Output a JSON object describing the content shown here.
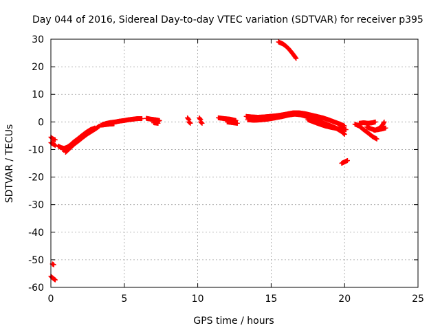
{
  "chart_data": {
    "type": "scatter",
    "title": "Day 044 of 2016, Sidereal Day-to-day VTEC variation (SDTVAR) for receiver p395",
    "xlabel": "GPS time / hours",
    "ylabel": "SDTVAR / TECUs",
    "xlim": [
      0,
      25
    ],
    "ylim": [
      -60,
      30
    ],
    "xticks": [
      0,
      5,
      10,
      15,
      20,
      25
    ],
    "yticks": [
      30,
      20,
      10,
      0,
      -10,
      -20,
      -30,
      -40,
      -50,
      -60
    ],
    "xtick_labels": [
      "0",
      "5",
      "10",
      "15",
      "20",
      "25"
    ],
    "ytick_labels": [
      "30",
      "20",
      "10",
      "0",
      "-10",
      "-20",
      "-30",
      "-40",
      "-50",
      "-60"
    ],
    "grid": true,
    "marker_color": "#ff0000",
    "marker": "plus",
    "segments": [
      {
        "name": "seg-1",
        "points": [
          [
            0.0,
            -5.5
          ],
          [
            0.1,
            -6.0
          ],
          [
            0.2,
            -6.3
          ],
          [
            0.3,
            -6.5
          ]
        ]
      },
      {
        "name": "seg-2",
        "points": [
          [
            0.0,
            -7.5
          ],
          [
            0.15,
            -8.0
          ],
          [
            0.3,
            -8.5
          ]
        ]
      },
      {
        "name": "seg-3",
        "points": [
          [
            0.5,
            -8.8
          ],
          [
            0.7,
            -9.3
          ],
          [
            0.9,
            -9.6
          ],
          [
            1.1,
            -9.2
          ],
          [
            1.3,
            -8.5
          ],
          [
            1.5,
            -7.5
          ],
          [
            1.8,
            -6.3
          ],
          [
            2.1,
            -5.0
          ],
          [
            2.4,
            -3.8
          ],
          [
            2.7,
            -2.8
          ],
          [
            3.0,
            -2.2
          ]
        ]
      },
      {
        "name": "seg-4",
        "points": [
          [
            1.0,
            -11.0
          ],
          [
            1.2,
            -10.0
          ],
          [
            1.4,
            -9.0
          ],
          [
            1.6,
            -8.0
          ],
          [
            1.9,
            -6.8
          ],
          [
            2.2,
            -5.5
          ],
          [
            2.5,
            -4.3
          ],
          [
            2.8,
            -3.3
          ],
          [
            3.1,
            -2.3
          ],
          [
            3.3,
            -1.5
          ]
        ]
      },
      {
        "name": "seg-5",
        "points": [
          [
            0.8,
            -10.0
          ],
          [
            1.1,
            -9.8
          ],
          [
            1.4,
            -8.8
          ],
          [
            1.7,
            -7.3
          ],
          [
            2.0,
            -6.0
          ]
        ]
      },
      {
        "name": "seg-6",
        "points": [
          [
            3.5,
            -1.0
          ],
          [
            3.8,
            -0.5
          ],
          [
            4.1,
            -0.2
          ],
          [
            4.4,
            0.0
          ],
          [
            4.7,
            0.3
          ],
          [
            5.0,
            0.5
          ],
          [
            5.3,
            0.8
          ],
          [
            5.6,
            1.0
          ],
          [
            5.9,
            1.2
          ],
          [
            6.2,
            1.2
          ]
        ]
      },
      {
        "name": "seg-7",
        "points": [
          [
            3.4,
            -1.2
          ],
          [
            3.7,
            -1.0
          ],
          [
            4.0,
            -0.8
          ],
          [
            4.3,
            -0.7
          ]
        ]
      },
      {
        "name": "seg-8",
        "points": [
          [
            6.5,
            1.3
          ],
          [
            6.8,
            1.0
          ],
          [
            7.1,
            0.8
          ],
          [
            7.4,
            0.5
          ],
          [
            7.0,
            -0.3
          ],
          [
            7.3,
            -0.5
          ]
        ]
      },
      {
        "name": "seg-9",
        "points": [
          [
            9.3,
            1.5
          ],
          [
            9.4,
            0.8
          ],
          [
            9.4,
            0.0
          ],
          [
            9.5,
            -0.5
          ]
        ]
      },
      {
        "name": "seg-10",
        "points": [
          [
            10.1,
            1.5
          ],
          [
            10.2,
            0.8
          ],
          [
            10.2,
            0.0
          ],
          [
            10.3,
            -0.5
          ]
        ]
      },
      {
        "name": "seg-11",
        "points": [
          [
            11.4,
            1.5
          ],
          [
            11.8,
            1.2
          ],
          [
            12.2,
            1.0
          ],
          [
            12.6,
            0.5
          ],
          [
            12.0,
            0.0
          ],
          [
            12.4,
            -0.3
          ],
          [
            12.7,
            -0.5
          ]
        ]
      },
      {
        "name": "seg-12",
        "points": [
          [
            13.3,
            2.0
          ],
          [
            13.7,
            1.8
          ],
          [
            14.1,
            1.7
          ],
          [
            14.5,
            1.8
          ],
          [
            14.9,
            2.0
          ],
          [
            15.3,
            2.2
          ],
          [
            15.7,
            2.5
          ],
          [
            16.1,
            2.9
          ],
          [
            16.5,
            3.3
          ],
          [
            16.9,
            3.3
          ],
          [
            17.3,
            3.0
          ],
          [
            17.7,
            2.5
          ],
          [
            18.1,
            2.0
          ],
          [
            18.5,
            1.5
          ],
          [
            18.9,
            0.8
          ],
          [
            19.3,
            0.0
          ],
          [
            19.7,
            -0.8
          ],
          [
            20.0,
            -1.5
          ]
        ]
      },
      {
        "name": "seg-13",
        "points": [
          [
            13.4,
            0.8
          ],
          [
            13.8,
            0.6
          ],
          [
            14.2,
            0.7
          ],
          [
            14.6,
            0.9
          ],
          [
            15.0,
            1.2
          ],
          [
            15.4,
            1.6
          ],
          [
            15.8,
            2.0
          ],
          [
            16.2,
            2.5
          ],
          [
            16.6,
            2.8
          ],
          [
            17.0,
            2.6
          ],
          [
            17.4,
            2.0
          ],
          [
            17.8,
            1.2
          ],
          [
            18.2,
            0.3
          ],
          [
            18.6,
            -0.5
          ],
          [
            19.0,
            -1.3
          ],
          [
            19.4,
            -2.2
          ],
          [
            19.8,
            -3.5
          ],
          [
            20.0,
            -4.5
          ]
        ]
      },
      {
        "name": "seg-14",
        "points": [
          [
            17.5,
            0.8
          ],
          [
            17.9,
            0.0
          ],
          [
            18.3,
            -0.8
          ],
          [
            18.7,
            -1.5
          ],
          [
            19.1,
            -2.0
          ],
          [
            19.5,
            -2.4
          ],
          [
            19.9,
            -2.6
          ],
          [
            20.1,
            -2.8
          ]
        ]
      },
      {
        "name": "seg-15",
        "points": [
          [
            15.5,
            29.0
          ],
          [
            15.8,
            28.3
          ],
          [
            16.0,
            27.5
          ],
          [
            16.2,
            26.5
          ],
          [
            16.4,
            25.2
          ],
          [
            16.6,
            23.8
          ],
          [
            16.7,
            23.0
          ]
        ]
      },
      {
        "name": "seg-16",
        "points": [
          [
            19.8,
            -15.0
          ],
          [
            20.0,
            -14.5
          ],
          [
            20.2,
            -14.0
          ]
        ]
      },
      {
        "name": "seg-17",
        "points": [
          [
            20.7,
            -0.8
          ],
          [
            21.0,
            -1.5
          ],
          [
            21.3,
            -2.8
          ],
          [
            21.6,
            -4.0
          ],
          [
            21.9,
            -5.3
          ],
          [
            22.2,
            -6.2
          ]
        ]
      },
      {
        "name": "seg-18",
        "points": [
          [
            21.0,
            -0.5
          ],
          [
            21.3,
            -0.3
          ],
          [
            21.6,
            -0.5
          ],
          [
            21.9,
            -0.3
          ],
          [
            22.1,
            0.0
          ]
        ]
      },
      {
        "name": "seg-19",
        "points": [
          [
            21.5,
            -1.8
          ],
          [
            21.8,
            -2.5
          ],
          [
            22.1,
            -3.0
          ],
          [
            22.4,
            -2.2
          ],
          [
            22.6,
            -1.0
          ],
          [
            22.7,
            0.0
          ]
        ]
      },
      {
        "name": "seg-20",
        "points": [
          [
            22.0,
            -3.0
          ],
          [
            22.3,
            -2.8
          ],
          [
            22.6,
            -2.5
          ],
          [
            22.8,
            -2.2
          ]
        ]
      },
      {
        "name": "seg-21",
        "points": [
          [
            0.1,
            -51.5
          ],
          [
            0.2,
            -51.8
          ]
        ]
      },
      {
        "name": "seg-22",
        "points": [
          [
            0.0,
            -56.0
          ],
          [
            0.15,
            -56.7
          ],
          [
            0.3,
            -57.3
          ]
        ]
      }
    ]
  }
}
